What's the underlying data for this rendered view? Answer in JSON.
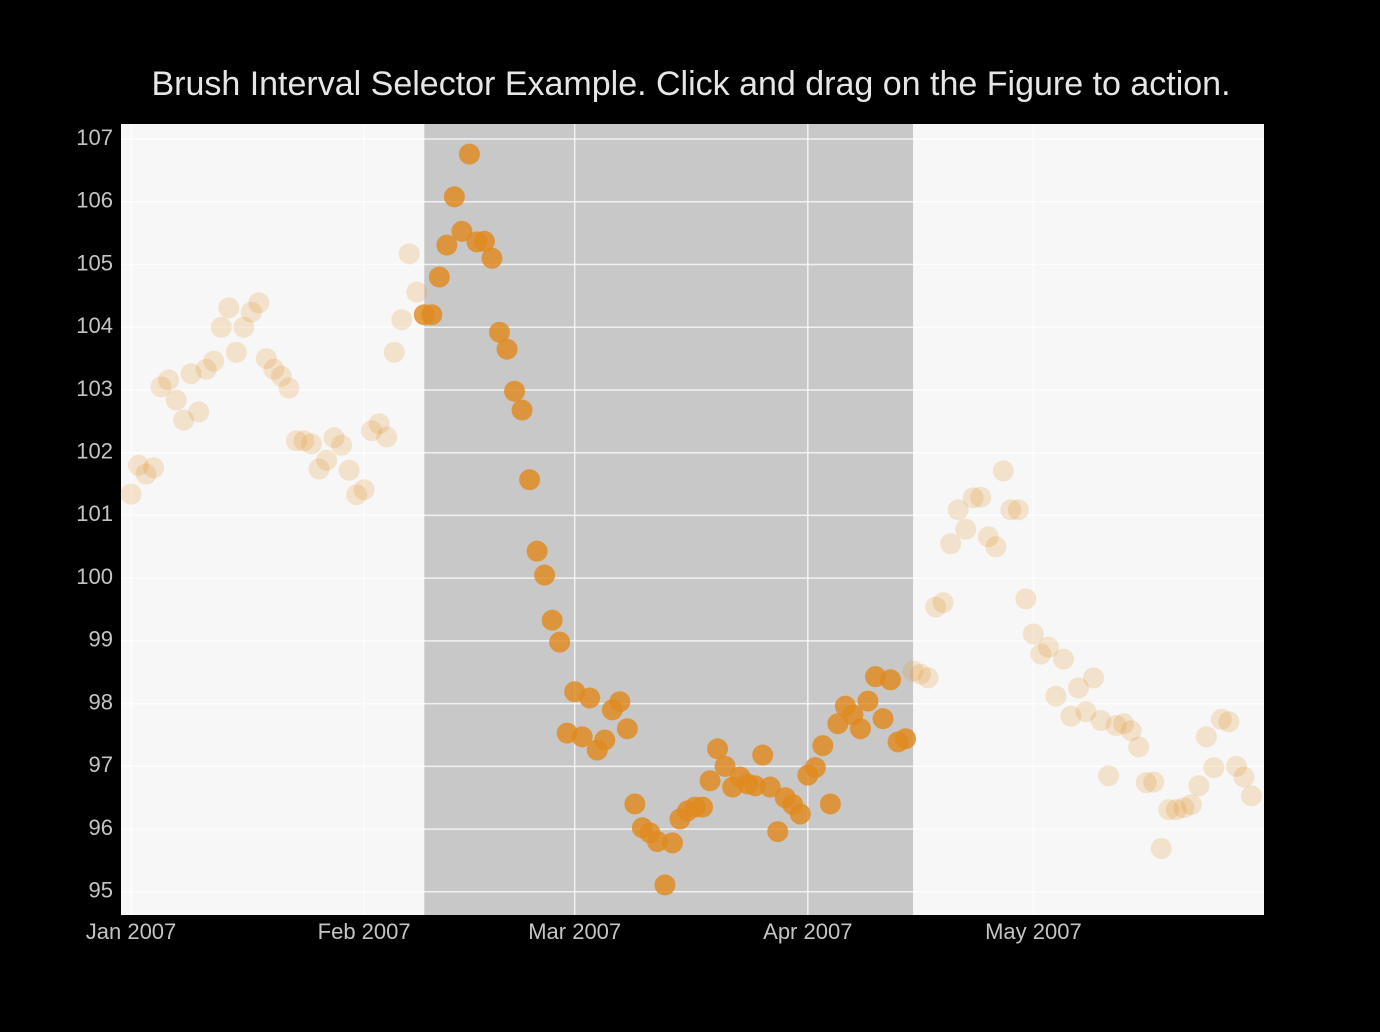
{
  "chart_data": {
    "type": "scatter",
    "title": "Brush Interval Selector Example. Click and drag on the Figure to action.",
    "color": "#e08a1e",
    "selected_range": [
      "2007-02-09",
      "2007-04-15"
    ],
    "xlim": [
      "2006-12-30T16:00Z",
      "2007-05-31T16:00Z"
    ],
    "ylim": [
      94.63,
      107.24
    ],
    "xticks": [
      {
        "value": "2007-01-01",
        "label": "Jan 2007"
      },
      {
        "value": "2007-02-01",
        "label": "Feb 2007"
      },
      {
        "value": "2007-03-01",
        "label": "Mar 2007"
      },
      {
        "value": "2007-04-01",
        "label": "Apr 2007"
      },
      {
        "value": "2007-05-01",
        "label": "May 2007"
      }
    ],
    "yticks": [
      95,
      96,
      97,
      98,
      99,
      100,
      101,
      102,
      103,
      104,
      105,
      106,
      107
    ],
    "grid": true,
    "x": [
      "2007-01-01",
      "2007-01-02",
      "2007-01-03",
      "2007-01-04",
      "2007-01-05",
      "2007-01-06",
      "2007-01-07",
      "2007-01-08",
      "2007-01-09",
      "2007-01-10",
      "2007-01-11",
      "2007-01-12",
      "2007-01-13",
      "2007-01-14",
      "2007-01-15",
      "2007-01-16",
      "2007-01-17",
      "2007-01-18",
      "2007-01-19",
      "2007-01-20",
      "2007-01-21",
      "2007-01-22",
      "2007-01-23",
      "2007-01-24",
      "2007-01-25",
      "2007-01-26",
      "2007-01-27",
      "2007-01-28",
      "2007-01-29",
      "2007-01-30",
      "2007-01-31",
      "2007-02-01",
      "2007-02-02",
      "2007-02-03",
      "2007-02-04",
      "2007-02-05",
      "2007-02-06",
      "2007-02-07",
      "2007-02-08",
      "2007-02-09",
      "2007-02-10",
      "2007-02-11",
      "2007-02-12",
      "2007-02-13",
      "2007-02-14",
      "2007-02-15",
      "2007-02-16",
      "2007-02-17",
      "2007-02-18",
      "2007-02-19",
      "2007-02-20",
      "2007-02-21",
      "2007-02-22",
      "2007-02-23",
      "2007-02-24",
      "2007-02-25",
      "2007-02-26",
      "2007-02-27",
      "2007-02-28",
      "2007-03-01",
      "2007-03-02",
      "2007-03-03",
      "2007-03-04",
      "2007-03-05",
      "2007-03-06",
      "2007-03-07",
      "2007-03-08",
      "2007-03-09",
      "2007-03-10",
      "2007-03-11",
      "2007-03-12",
      "2007-03-13",
      "2007-03-14",
      "2007-03-15",
      "2007-03-16",
      "2007-03-17",
      "2007-03-18",
      "2007-03-19",
      "2007-03-20",
      "2007-03-21",
      "2007-03-22",
      "2007-03-23",
      "2007-03-24",
      "2007-03-25",
      "2007-03-26",
      "2007-03-27",
      "2007-03-28",
      "2007-03-29",
      "2007-03-30",
      "2007-03-31",
      "2007-04-01",
      "2007-04-02",
      "2007-04-03",
      "2007-04-04",
      "2007-04-05",
      "2007-04-06",
      "2007-04-07",
      "2007-04-08",
      "2007-04-09",
      "2007-04-10",
      "2007-04-11",
      "2007-04-12",
      "2007-04-13",
      "2007-04-14",
      "2007-04-15",
      "2007-04-16",
      "2007-04-17",
      "2007-04-18",
      "2007-04-19",
      "2007-04-20",
      "2007-04-21",
      "2007-04-22",
      "2007-04-23",
      "2007-04-24",
      "2007-04-25",
      "2007-04-26",
      "2007-04-27",
      "2007-04-28",
      "2007-04-29",
      "2007-04-30",
      "2007-05-01",
      "2007-05-02",
      "2007-05-03",
      "2007-05-04",
      "2007-05-05",
      "2007-05-06",
      "2007-05-07",
      "2007-05-08",
      "2007-05-09",
      "2007-05-10",
      "2007-05-11",
      "2007-05-12",
      "2007-05-13",
      "2007-05-14",
      "2007-05-15",
      "2007-05-16",
      "2007-05-17",
      "2007-05-18",
      "2007-05-19",
      "2007-05-20",
      "2007-05-21",
      "2007-05-22",
      "2007-05-23",
      "2007-05-24",
      "2007-05-25",
      "2007-05-26",
      "2007-05-27",
      "2007-05-28",
      "2007-05-29",
      "2007-05-30"
    ],
    "values": [
      101.34,
      101.8,
      101.66,
      101.76,
      103.05,
      103.16,
      102.84,
      102.52,
      103.26,
      102.65,
      103.33,
      103.46,
      104.0,
      104.31,
      103.6,
      104.0,
      104.24,
      104.39,
      103.5,
      103.33,
      103.22,
      103.03,
      102.19,
      102.19,
      102.14,
      101.74,
      101.88,
      102.24,
      102.12,
      101.72,
      101.33,
      101.41,
      102.35,
      102.46,
      102.25,
      103.6,
      104.12,
      105.17,
      104.56,
      104.2,
      104.2,
      104.8,
      105.31,
      106.08,
      105.53,
      106.76,
      105.36,
      105.37,
      105.1,
      103.92,
      103.65,
      102.98,
      102.68,
      101.57,
      100.43,
      100.05,
      99.33,
      98.98,
      97.53,
      98.19,
      97.47,
      98.09,
      97.26,
      97.42,
      97.9,
      98.03,
      97.6,
      96.4,
      96.02,
      95.94,
      95.8,
      95.11,
      95.78,
      96.16,
      96.29,
      96.35,
      96.35,
      96.77,
      97.28,
      97.0,
      96.67,
      96.83,
      96.72,
      96.69,
      97.18,
      96.67,
      95.96,
      96.5,
      96.39,
      96.24,
      96.86,
      96.98,
      97.33,
      96.4,
      97.68,
      97.96,
      97.82,
      97.6,
      98.04,
      98.43,
      97.76,
      98.38,
      97.39,
      97.44,
      98.52,
      98.47,
      98.41,
      99.54,
      99.61,
      100.55,
      101.09,
      100.78,
      101.28,
      101.29,
      100.66,
      100.5,
      101.71,
      101.09,
      101.09,
      99.67,
      99.11,
      98.79,
      98.9,
      98.12,
      98.71,
      97.8,
      98.25,
      97.87,
      98.41,
      97.73,
      96.85,
      97.65,
      97.68,
      97.57,
      97.31,
      96.74,
      96.75,
      95.69,
      96.31,
      96.31,
      96.34,
      96.39,
      96.69,
      97.47,
      96.98,
      97.75,
      97.71,
      97.0,
      96.83,
      96.53
    ]
  }
}
